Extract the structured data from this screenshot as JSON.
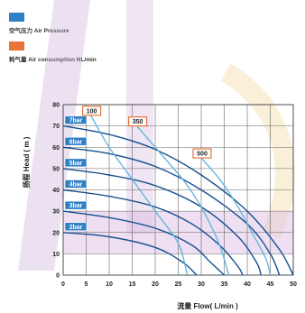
{
  "legend": {
    "items": [
      {
        "label": "空气压力 Air Pressure",
        "color": "#2e7fc4"
      },
      {
        "label": "耗气量 Air consumption NL/min",
        "color": "#e8743b"
      }
    ]
  },
  "chart_data": {
    "type": "line",
    "xlabel": "流量 Flow( L/min )",
    "ylabel": "扬程 Head ( m )",
    "xlim": [
      0,
      50
    ],
    "ylim": [
      0,
      80
    ],
    "x_ticks": [
      0,
      5,
      10,
      15,
      20,
      25,
      30,
      35,
      40,
      45,
      50
    ],
    "y_ticks": [
      0,
      10,
      20,
      30,
      40,
      50,
      60,
      70,
      80
    ],
    "grid": true,
    "pressure_curves": [
      {
        "name": "7bar",
        "points": [
          [
            0,
            70
          ],
          [
            10,
            66
          ],
          [
            20,
            59
          ],
          [
            30,
            47
          ],
          [
            40,
            30
          ],
          [
            47,
            12
          ],
          [
            50,
            0
          ]
        ]
      },
      {
        "name": "6bar",
        "points": [
          [
            0,
            60
          ],
          [
            10,
            57
          ],
          [
            20,
            51
          ],
          [
            30,
            40
          ],
          [
            40,
            24
          ],
          [
            45,
            10
          ],
          [
            47,
            0
          ]
        ]
      },
      {
        "name": "5bar",
        "points": [
          [
            0,
            50
          ],
          [
            10,
            47
          ],
          [
            20,
            42
          ],
          [
            30,
            32
          ],
          [
            38,
            18
          ],
          [
            42,
            6
          ],
          [
            43,
            0
          ]
        ]
      },
      {
        "name": "4bar",
        "points": [
          [
            0,
            40
          ],
          [
            10,
            37
          ],
          [
            20,
            32
          ],
          [
            28,
            24
          ],
          [
            34,
            14
          ],
          [
            38,
            4
          ],
          [
            39,
            0
          ]
        ]
      },
      {
        "name": "3bar",
        "points": [
          [
            0,
            30
          ],
          [
            10,
            27
          ],
          [
            20,
            22
          ],
          [
            28,
            14
          ],
          [
            32,
            6
          ],
          [
            35,
            0
          ]
        ]
      },
      {
        "name": "2bar",
        "points": [
          [
            0,
            20
          ],
          [
            10,
            18
          ],
          [
            20,
            13
          ],
          [
            26,
            6
          ],
          [
            29,
            0
          ]
        ]
      }
    ],
    "consumption_curves": [
      {
        "name": "100",
        "points": [
          [
            6,
            75
          ],
          [
            10,
            60
          ],
          [
            15,
            45
          ],
          [
            20,
            30
          ],
          [
            25,
            15
          ],
          [
            27,
            0
          ]
        ]
      },
      {
        "name": "350",
        "points": [
          [
            16,
            70
          ],
          [
            22,
            55
          ],
          [
            27,
            42
          ],
          [
            31,
            28
          ],
          [
            34,
            14
          ],
          [
            36,
            0
          ]
        ]
      },
      {
        "name": "500",
        "points": [
          [
            30,
            55
          ],
          [
            34,
            45
          ],
          [
            38,
            32
          ],
          [
            41,
            20
          ],
          [
            44,
            8
          ],
          [
            45,
            0
          ]
        ]
      }
    ]
  }
}
